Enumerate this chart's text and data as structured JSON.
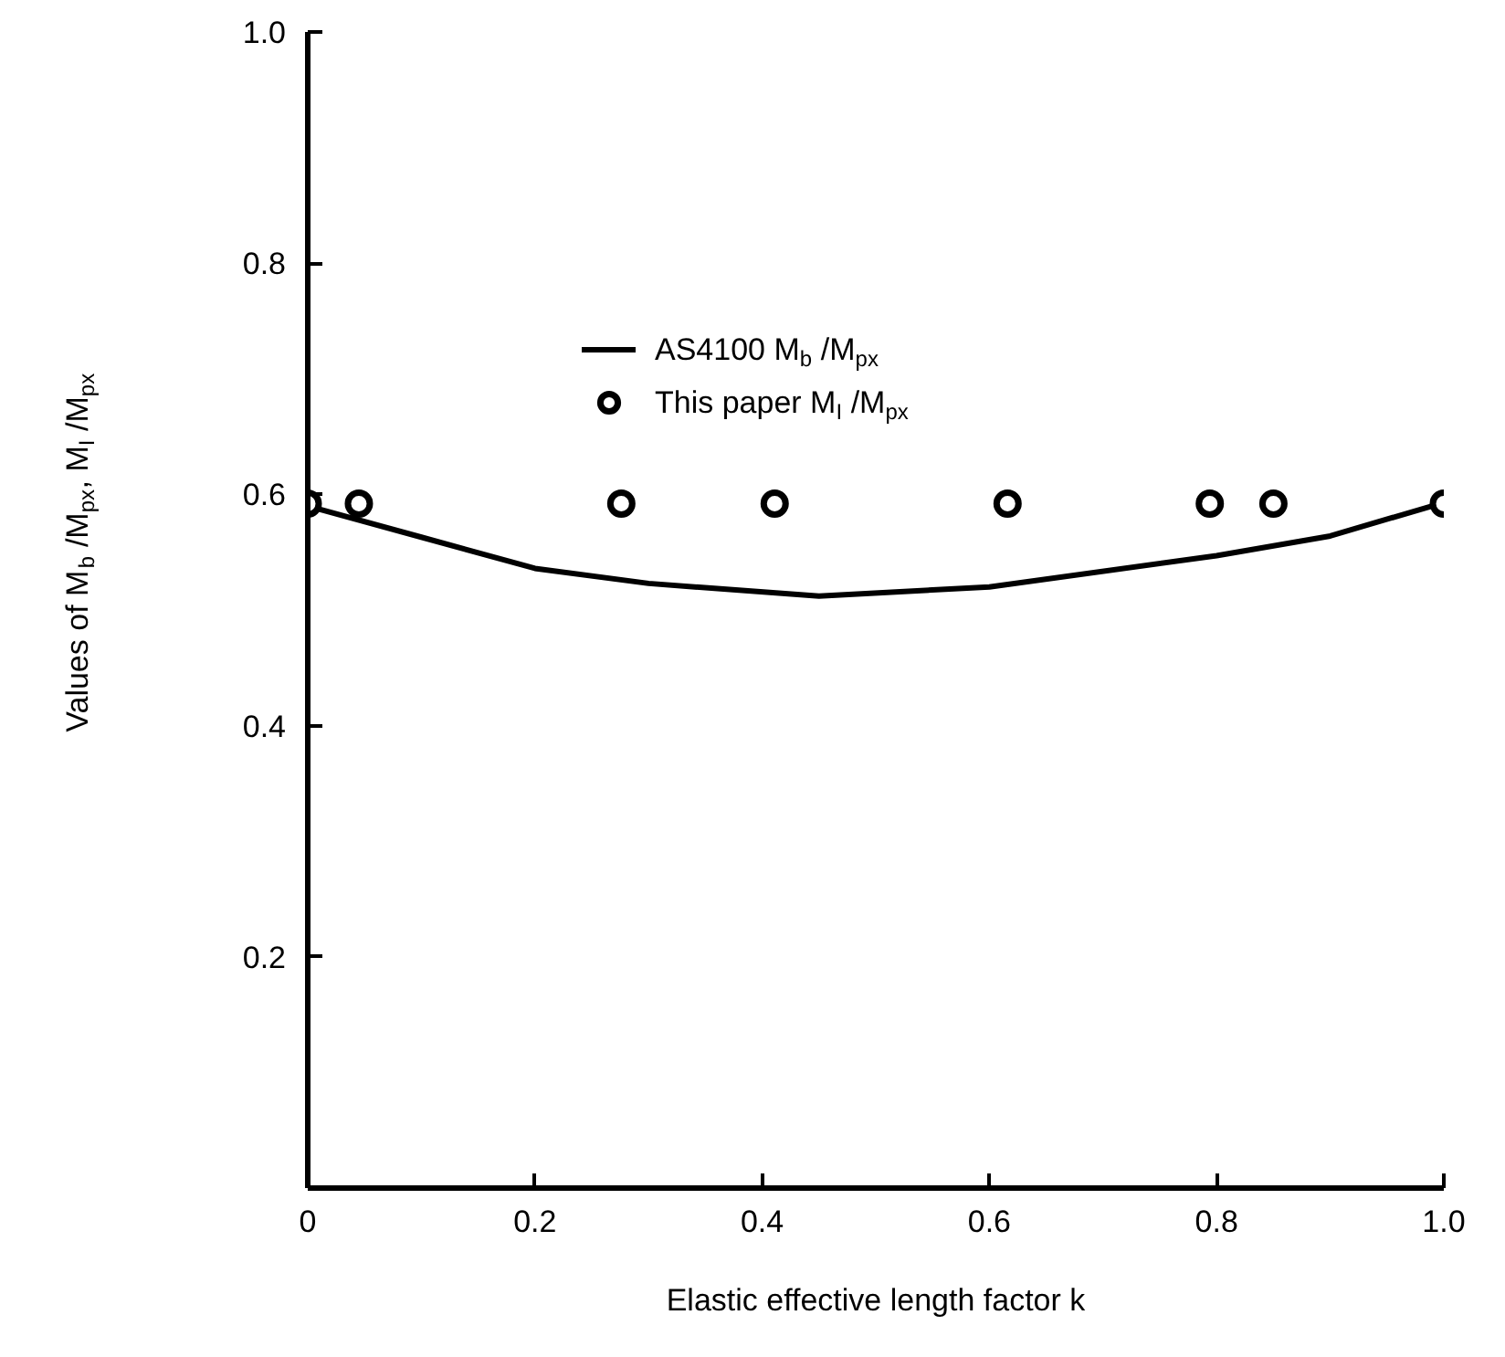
{
  "chart_data": {
    "type": "line",
    "xlabel": "Elastic effective length factor k",
    "ylabel": "Values of M$_{b}$ /M$_{px}$, M$_{I}$ /M$_{px}$",
    "xlim": [
      0,
      1.0
    ],
    "ylim": [
      0,
      1.0
    ],
    "xticks": [
      0,
      0.2,
      0.4,
      0.6,
      0.8,
      {
        "value": 1.0,
        "label": "1.0"
      }
    ],
    "yticks": [
      0.2,
      0.4,
      0.6,
      0.8,
      {
        "value": 1.0,
        "label": "1.0"
      }
    ],
    "grid": false,
    "legend": "top",
    "series": [
      {
        "name": "AS4100 M$_{b}$ /M$_{px}$",
        "type": "line",
        "color": "#000000",
        "line_style": "solid",
        "marker": "none",
        "x": [
          0,
          0.1,
          0.2,
          0.3,
          0.45,
          0.6,
          0.8,
          0.9,
          1.0
        ],
        "values": [
          0.59,
          0.563,
          0.536,
          0.523,
          0.512,
          0.52,
          0.547,
          0.564,
          0.593
        ]
      },
      {
        "name": "This paper M$_{I}$ /M$_{px}$",
        "type": "scatter",
        "color": "#000000",
        "marker": "circle",
        "x": [
          0,
          0.045,
          0.276,
          0.411,
          0.616,
          0.794,
          0.85,
          1.0
        ],
        "values": [
          0.592,
          0.592,
          0.592,
          0.592,
          0.592,
          0.592,
          0.592,
          0.592
        ]
      }
    ]
  }
}
